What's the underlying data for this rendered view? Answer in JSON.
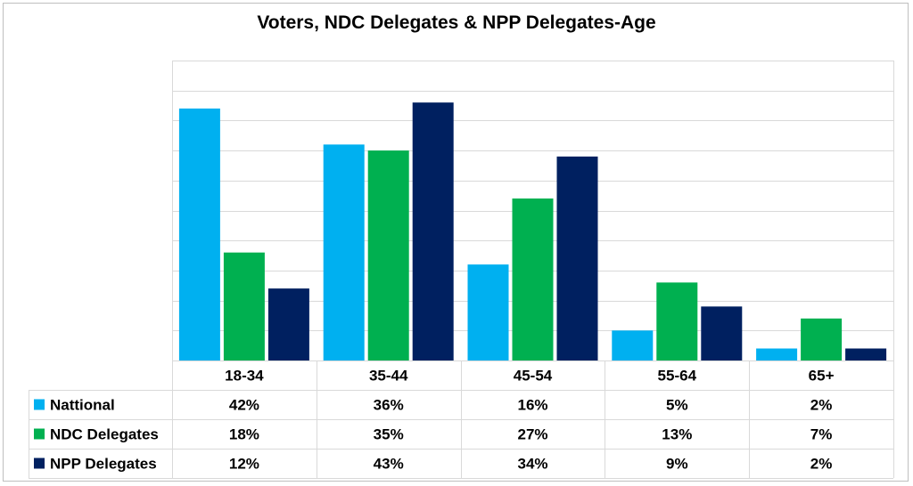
{
  "chart_data": {
    "type": "bar",
    "title": "Voters, NDC Delegates & NPP Delegates-Age",
    "categories": [
      "18-34",
      "35-44",
      "45-54",
      "55-64",
      "65+"
    ],
    "series": [
      {
        "name": "Nattional",
        "values": [
          42,
          36,
          16,
          5,
          2
        ],
        "labels": [
          "42%",
          "36%",
          "16%",
          "5%",
          "2%"
        ],
        "color": "#00b0f0"
      },
      {
        "name": "NDC Delegates",
        "values": [
          18,
          35,
          27,
          13,
          7
        ],
        "labels": [
          "18%",
          "35%",
          "27%",
          "13%",
          "7%"
        ],
        "color": "#00b050"
      },
      {
        "name": "NPP Delegates",
        "values": [
          12,
          43,
          34,
          9,
          2
        ],
        "labels": [
          "12%",
          "43%",
          "34%",
          "9%",
          "2%"
        ],
        "color": "#002060"
      }
    ],
    "ylim": [
      0,
      50
    ],
    "gridlines": true,
    "legend": "data-table"
  }
}
